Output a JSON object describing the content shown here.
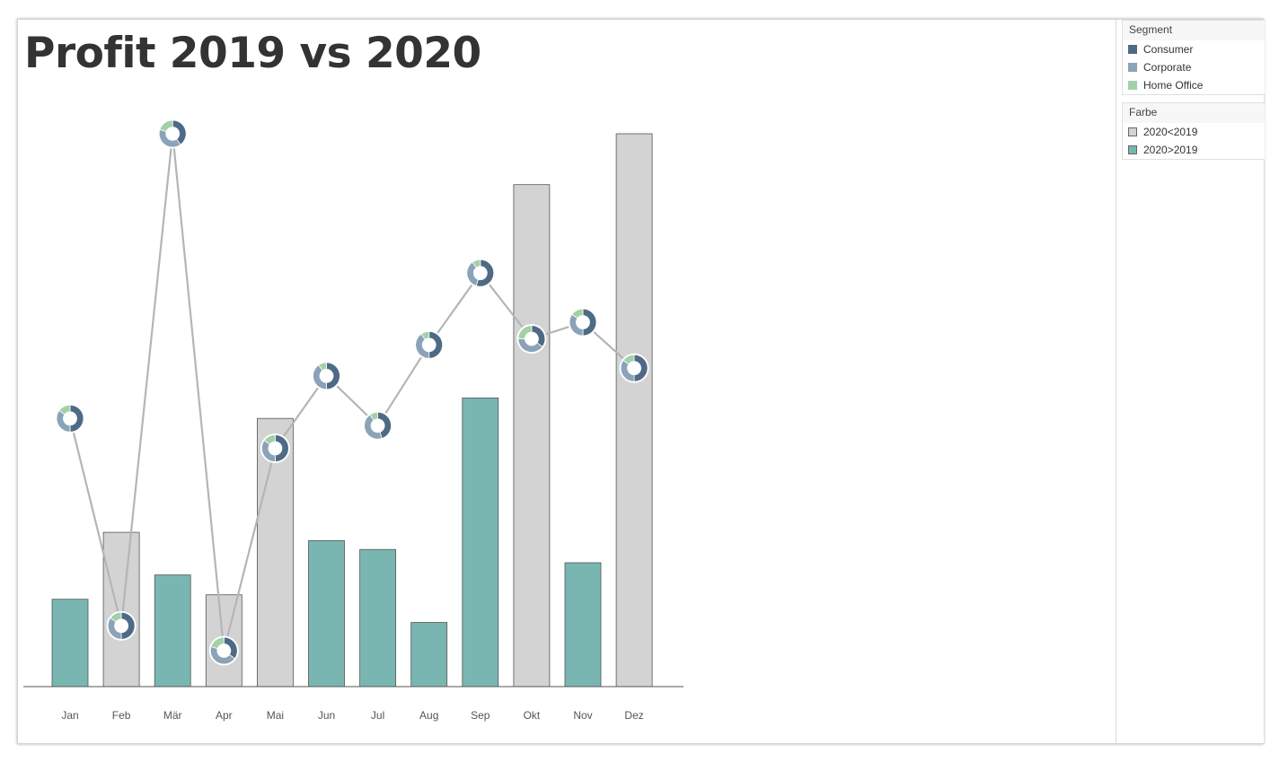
{
  "title": "Profit 2019 vs 2020",
  "legends": {
    "segment": {
      "title": "Segment",
      "items": [
        {
          "label": "Consumer",
          "color": "#4e6a85"
        },
        {
          "label": "Corporate",
          "color": "#8aa3b9"
        },
        {
          "label": "Home Office",
          "color": "#a3d0a7"
        }
      ]
    },
    "farbe": {
      "title": "Farbe",
      "items": [
        {
          "label": "2020<2019",
          "color": "#d3d3d3"
        },
        {
          "label": "2020>2019",
          "color": "#79b6b1"
        }
      ]
    }
  },
  "chart_data": {
    "type": "bar",
    "categories": [
      "Jan",
      "Feb",
      "Mär",
      "Apr",
      "Mai",
      "Jun",
      "Jul",
      "Aug",
      "Sep",
      "Okt",
      "Nov",
      "Dez"
    ],
    "ylim": [
      0,
      100
    ],
    "grid": false,
    "axis_labels_shown": false,
    "bars": {
      "name": "Profit 2020",
      "values": [
        15.8,
        27.9,
        20.2,
        16.6,
        48.5,
        26.4,
        24.8,
        11.6,
        52.2,
        90.8,
        22.4,
        100
      ],
      "colors": [
        "#79b6b1",
        "#d3d3d3",
        "#79b6b1",
        "#d3d3d3",
        "#d3d3d3",
        "#79b6b1",
        "#79b6b1",
        "#79b6b1",
        "#79b6b1",
        "#d3d3d3",
        "#79b6b1",
        "#d3d3d3"
      ]
    },
    "line": {
      "name": "Profit 2019",
      "color": "#b5b5b5",
      "values": [
        48.5,
        11.0,
        100,
        6.5,
        43.1,
        56.2,
        47.2,
        61.8,
        74.8,
        62.9,
        65.9,
        57.6
      ],
      "donut_segments": [
        "Consumer",
        "Corporate",
        "Home Office"
      ],
      "donut_shares": [
        [
          0.5,
          0.35,
          0.15
        ],
        [
          0.5,
          0.35,
          0.15
        ],
        [
          0.4,
          0.4,
          0.2
        ],
        [
          0.35,
          0.45,
          0.2
        ],
        [
          0.5,
          0.35,
          0.15
        ],
        [
          0.5,
          0.4,
          0.1
        ],
        [
          0.45,
          0.45,
          0.1
        ],
        [
          0.5,
          0.4,
          0.1
        ],
        [
          0.55,
          0.35,
          0.1
        ],
        [
          0.35,
          0.4,
          0.25
        ],
        [
          0.5,
          0.35,
          0.15
        ],
        [
          0.5,
          0.35,
          0.15
        ]
      ]
    }
  }
}
